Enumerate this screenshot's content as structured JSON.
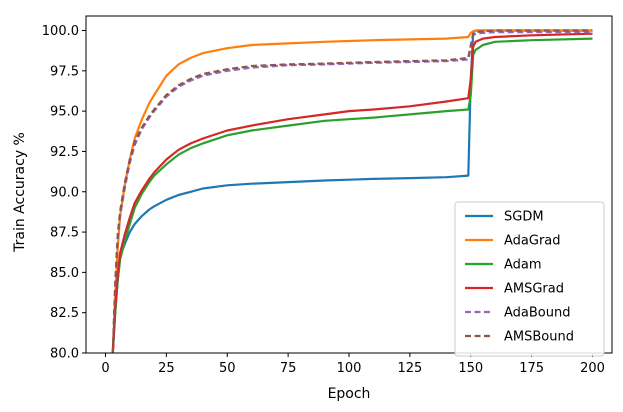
{
  "chart_data": {
    "type": "line",
    "title": "",
    "xlabel": "Epoch",
    "ylabel": "Train Accuracy %",
    "xlim": [
      -8,
      208
    ],
    "ylim": [
      80.0,
      100.9
    ],
    "x_ticks": [
      0,
      25,
      50,
      75,
      100,
      125,
      150,
      175,
      200
    ],
    "x_tick_labels": [
      "0",
      "25",
      "50",
      "75",
      "100",
      "125",
      "150",
      "175",
      "200"
    ],
    "y_ticks": [
      80.0,
      82.5,
      85.0,
      87.5,
      90.0,
      92.5,
      95.0,
      97.5,
      100.0
    ],
    "y_tick_labels": [
      "80.0",
      "82.5",
      "85.0",
      "87.5",
      "90.0",
      "92.5",
      "95.0",
      "97.5",
      "100.0"
    ],
    "grid": false,
    "legend_position": "bottom-right",
    "x": [
      3,
      4,
      5,
      6,
      8,
      10,
      12,
      15,
      18,
      20,
      25,
      30,
      35,
      40,
      50,
      60,
      75,
      90,
      100,
      110,
      125,
      140,
      149,
      150,
      151,
      152,
      155,
      160,
      175,
      200
    ],
    "series": [
      {
        "name": "SGDM",
        "color": "#1f77b4",
        "dash": "solid",
        "values": [
          80.0,
          82.5,
          84.5,
          86.0,
          86.8,
          87.5,
          88.0,
          88.5,
          88.9,
          89.1,
          89.5,
          89.8,
          90.0,
          90.2,
          90.4,
          90.5,
          90.6,
          90.7,
          90.75,
          90.8,
          90.85,
          90.9,
          91.0,
          97.0,
          99.9,
          100.0,
          100.0,
          100.0,
          100.0,
          100.0
        ]
      },
      {
        "name": "AdaGrad",
        "color": "#ff7f0e",
        "dash": "solid",
        "values": [
          80.0,
          83.5,
          86.5,
          88.5,
          90.5,
          92.0,
          93.3,
          94.5,
          95.5,
          96.0,
          97.2,
          97.9,
          98.3,
          98.6,
          98.9,
          99.1,
          99.2,
          99.3,
          99.35,
          99.4,
          99.45,
          99.5,
          99.6,
          99.85,
          99.95,
          100.0,
          100.0,
          100.0,
          100.0,
          100.0
        ]
      },
      {
        "name": "Adam",
        "color": "#2ca02c",
        "dash": "solid",
        "values": [
          80.0,
          82.5,
          84.5,
          85.8,
          87.0,
          88.0,
          89.0,
          89.9,
          90.6,
          91.0,
          91.7,
          92.3,
          92.7,
          93.0,
          93.5,
          93.8,
          94.1,
          94.4,
          94.5,
          94.6,
          94.8,
          95.0,
          95.1,
          96.0,
          98.5,
          98.8,
          99.1,
          99.3,
          99.4,
          99.5
        ]
      },
      {
        "name": "AMSGrad",
        "color": "#d62728",
        "dash": "solid",
        "values": [
          80.0,
          82.8,
          84.8,
          86.2,
          87.4,
          88.4,
          89.3,
          90.1,
          90.8,
          91.2,
          92.0,
          92.6,
          93.0,
          93.3,
          93.8,
          94.1,
          94.5,
          94.8,
          95.0,
          95.1,
          95.3,
          95.6,
          95.8,
          97.0,
          99.0,
          99.3,
          99.5,
          99.6,
          99.7,
          99.8
        ]
      },
      {
        "name": "AdaBound",
        "color": "#9467bd",
        "dash": "dashed",
        "values": [
          80.0,
          84.0,
          87.0,
          88.5,
          90.3,
          91.8,
          92.9,
          93.9,
          94.6,
          95.0,
          95.9,
          96.5,
          96.9,
          97.2,
          97.5,
          97.7,
          97.85,
          97.9,
          97.95,
          98.0,
          98.05,
          98.1,
          98.2,
          99.0,
          99.7,
          99.8,
          99.85,
          99.9,
          99.9,
          99.9
        ]
      },
      {
        "name": "AMSBound",
        "color": "#8c564b",
        "dash": "dashed",
        "values": [
          80.0,
          84.3,
          87.3,
          88.8,
          90.6,
          92.0,
          93.1,
          94.0,
          94.7,
          95.1,
          96.0,
          96.6,
          97.0,
          97.3,
          97.6,
          97.8,
          97.9,
          97.95,
          98.0,
          98.05,
          98.1,
          98.15,
          98.3,
          99.1,
          99.8,
          99.9,
          99.95,
          100.0,
          100.0,
          100.0
        ]
      }
    ]
  }
}
